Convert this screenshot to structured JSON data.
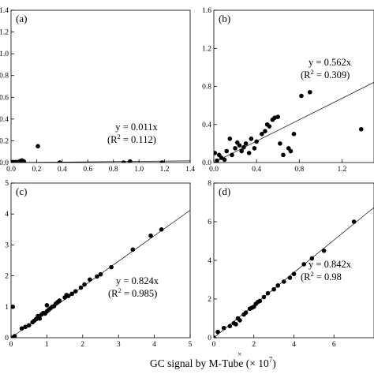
{
  "xlabel": "GC signal by M-Tube (× 10",
  "xlabel_exp": "7",
  "xlabel_close": ")",
  "xlabel_marker": "×",
  "chart_data": [
    {
      "type": "scatter",
      "panel_label": "(a)",
      "equation": "y = 0.011x",
      "r2_prefix": "(R",
      "r2_exp": "2",
      "r2_value": " = 0.112)",
      "xlim": [
        0,
        1.4
      ],
      "ylim": [
        0,
        1.4
      ],
      "xticks": [
        0.0,
        0.2,
        0.4,
        0.6,
        0.8,
        1.0,
        1.2,
        1.4
      ],
      "xtick_labels": [
        "0.0",
        "0.2",
        "0.4",
        "0.6",
        "0.8",
        "1.0",
        "1.2",
        "1.4"
      ],
      "yticks": [
        0.0,
        0.2,
        0.4,
        0.6,
        0.8,
        1.0,
        1.2,
        1.4
      ],
      "ytick_labels": [
        "0.0",
        "0.2",
        "0.4",
        "0.6",
        "0.8",
        "1.0",
        "1.2",
        "1.4"
      ],
      "fit_slope": 0.011,
      "points": [
        [
          0.005,
          0.0
        ],
        [
          0.015,
          0.005
        ],
        [
          0.025,
          0.0
        ],
        [
          0.035,
          0.005
        ],
        [
          0.045,
          0.0
        ],
        [
          0.055,
          0.005
        ],
        [
          0.065,
          0.01
        ],
        [
          0.075,
          0.015
        ],
        [
          0.085,
          0.02
        ],
        [
          0.1,
          0.01
        ],
        [
          0.21,
          0.15
        ],
        [
          0.38,
          0.0
        ],
        [
          0.88,
          0.0
        ],
        [
          0.93,
          0.01
        ],
        [
          1.18,
          0.0
        ]
      ]
    },
    {
      "type": "scatter",
      "panel_label": "(b)",
      "equation": "y = 0.562x",
      "r2_prefix": "(R",
      "r2_exp": "2",
      "r2_value": " = 0.309)",
      "xlim": [
        0,
        1.5
      ],
      "ylim": [
        0,
        1.6
      ],
      "xticks": [
        0.0,
        0.4,
        0.8,
        1.2
      ],
      "xtick_labels": [
        "0.0",
        "0.4",
        "0.8",
        "1.2"
      ],
      "yticks": [
        0.0,
        0.4,
        0.8,
        1.2,
        1.6
      ],
      "ytick_labels": [
        "0.0",
        "0.4",
        "0.8",
        "1.2",
        "1.6"
      ],
      "fit_slope": 0.562,
      "points": [
        [
          0.01,
          0.1
        ],
        [
          0.03,
          0.02
        ],
        [
          0.05,
          0.08
        ],
        [
          0.07,
          0.05
        ],
        [
          0.1,
          0.03
        ],
        [
          0.12,
          0.12
        ],
        [
          0.15,
          0.25
        ],
        [
          0.17,
          0.08
        ],
        [
          0.2,
          0.15
        ],
        [
          0.22,
          0.21
        ],
        [
          0.24,
          0.18
        ],
        [
          0.26,
          0.12
        ],
        [
          0.28,
          0.16
        ],
        [
          0.3,
          0.2
        ],
        [
          0.33,
          0.1
        ],
        [
          0.35,
          0.25
        ],
        [
          0.38,
          0.15
        ],
        [
          0.4,
          0.22
        ],
        [
          0.45,
          0.3
        ],
        [
          0.48,
          0.33
        ],
        [
          0.5,
          0.4
        ],
        [
          0.52,
          0.38
        ],
        [
          0.55,
          0.45
        ],
        [
          0.57,
          0.47
        ],
        [
          0.6,
          0.48
        ],
        [
          0.62,
          0.2
        ],
        [
          0.65,
          0.08
        ],
        [
          0.7,
          0.15
        ],
        [
          0.72,
          0.12
        ],
        [
          0.75,
          0.3
        ],
        [
          0.82,
          0.7
        ],
        [
          0.9,
          0.74
        ],
        [
          1.38,
          0.35
        ]
      ]
    },
    {
      "type": "scatter",
      "panel_label": "(c)",
      "equation": "y = 0.824x",
      "r2_prefix": "(R",
      "r2_exp": "2",
      "r2_value": " = 0.985)",
      "xlim": [
        0,
        5
      ],
      "ylim": [
        0,
        5
      ],
      "xticks": [
        0,
        1,
        2,
        3,
        4,
        5
      ],
      "xtick_labels": [
        "0",
        "1",
        "2",
        "3",
        "4",
        "5"
      ],
      "yticks": [
        0,
        1,
        2,
        3,
        4,
        5
      ],
      "ytick_labels": [
        "0",
        "1",
        "2",
        "3",
        "4",
        "5"
      ],
      "fit_slope": 0.824,
      "points": [
        [
          0.05,
          1.0
        ],
        [
          0.05,
          0.0
        ],
        [
          0.1,
          0.05
        ],
        [
          0.3,
          0.3
        ],
        [
          0.4,
          0.35
        ],
        [
          0.5,
          0.4
        ],
        [
          0.6,
          0.5
        ],
        [
          0.65,
          0.55
        ],
        [
          0.7,
          0.6
        ],
        [
          0.75,
          0.7
        ],
        [
          0.8,
          0.62
        ],
        [
          0.85,
          0.75
        ],
        [
          0.9,
          0.8
        ],
        [
          0.95,
          0.78
        ],
        [
          1.0,
          0.85
        ],
        [
          1.0,
          1.05
        ],
        [
          1.05,
          0.9
        ],
        [
          1.1,
          0.95
        ],
        [
          1.15,
          1.0
        ],
        [
          1.2,
          1.02
        ],
        [
          1.25,
          1.1
        ],
        [
          1.3,
          1.15
        ],
        [
          1.35,
          1.2
        ],
        [
          1.5,
          1.3
        ],
        [
          1.55,
          1.38
        ],
        [
          1.6,
          1.35
        ],
        [
          1.7,
          1.42
        ],
        [
          1.8,
          1.5
        ],
        [
          1.95,
          1.62
        ],
        [
          2.05,
          1.72
        ],
        [
          2.2,
          1.88
        ],
        [
          2.4,
          1.98
        ],
        [
          2.5,
          2.05
        ],
        [
          2.8,
          2.28
        ],
        [
          3.4,
          2.85
        ],
        [
          3.9,
          3.3
        ],
        [
          4.2,
          3.5
        ]
      ]
    },
    {
      "type": "scatter",
      "panel_label": "(d)",
      "equation": "y = 0.842x",
      "r2_prefix": "(R",
      "r2_exp": "2",
      "r2_value": " = 0.98",
      "xlim": [
        0,
        8
      ],
      "ylim": [
        0,
        8
      ],
      "xticks": [
        0,
        2,
        4,
        6
      ],
      "xtick_labels": [
        "0",
        "2",
        "4",
        "6"
      ],
      "yticks": [
        0,
        2,
        4,
        6,
        8
      ],
      "ytick_labels": [
        "0",
        "2",
        "4",
        "6",
        "8"
      ],
      "fit_slope": 0.842,
      "points": [
        [
          0.0,
          0.0
        ],
        [
          0.2,
          0.3
        ],
        [
          0.5,
          0.5
        ],
        [
          0.8,
          0.6
        ],
        [
          1.0,
          0.75
        ],
        [
          1.1,
          0.7
        ],
        [
          1.2,
          1.0
        ],
        [
          1.3,
          0.9
        ],
        [
          1.5,
          1.2
        ],
        [
          1.6,
          1.3
        ],
        [
          1.8,
          1.5
        ],
        [
          1.9,
          1.55
        ],
        [
          2.0,
          1.6
        ],
        [
          2.1,
          1.75
        ],
        [
          2.2,
          1.85
        ],
        [
          2.3,
          1.9
        ],
        [
          2.5,
          2.1
        ],
        [
          2.7,
          2.3
        ],
        [
          3.0,
          2.5
        ],
        [
          3.2,
          2.7
        ],
        [
          3.5,
          2.9
        ],
        [
          3.8,
          3.1
        ],
        [
          4.0,
          3.3
        ],
        [
          4.5,
          3.8
        ],
        [
          4.9,
          4.1
        ],
        [
          5.5,
          4.5
        ],
        [
          7.0,
          6.0
        ]
      ]
    }
  ]
}
